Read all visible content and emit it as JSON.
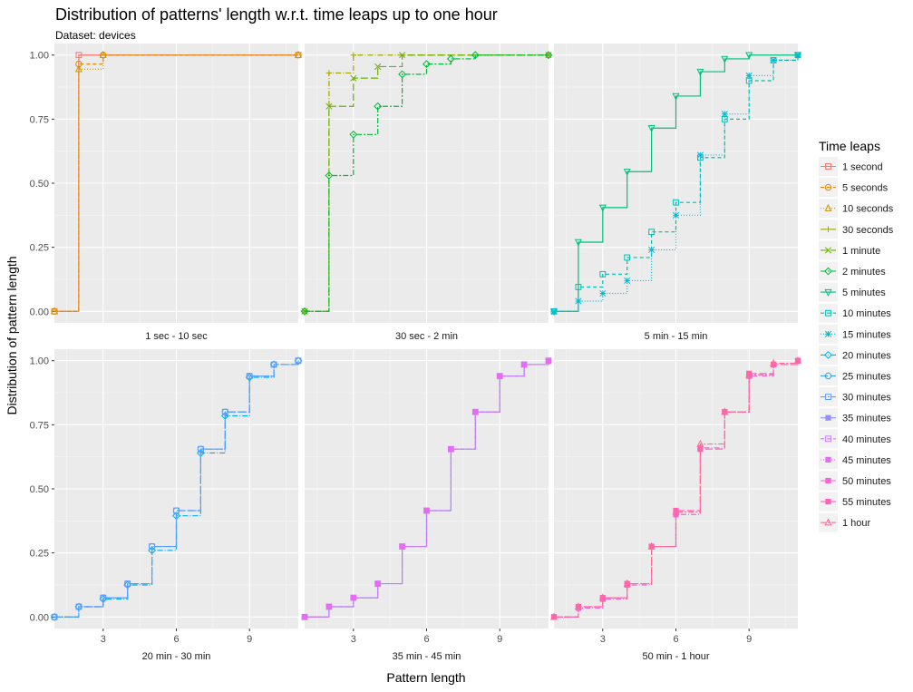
{
  "chart_data": {
    "type": "line",
    "step": true,
    "title": "Distribution of patterns' length w.r.t. time leaps up to one hour",
    "subtitle": "Dataset: devices",
    "xlabel": "Pattern length",
    "ylabel": "Distribution of pattern length",
    "ylim": [
      0,
      1
    ],
    "yticks": [
      0,
      0.25,
      0.5,
      0.75,
      1
    ],
    "ytick_labels": [
      "0.00",
      "0.25",
      "0.50",
      "0.75",
      "1.00"
    ],
    "legend_title": "Time leaps",
    "legend_position": "right",
    "series_styles": [
      {
        "name": "1 second",
        "color": "#F8766D",
        "shape": "square-cross",
        "dash": ""
      },
      {
        "name": "5 seconds",
        "color": "#E58700",
        "shape": "circle",
        "dash": "4,3"
      },
      {
        "name": "10 seconds",
        "color": "#C99800",
        "shape": "triangle",
        "dash": "1,2"
      },
      {
        "name": "30 seconds",
        "color": "#A3A500",
        "shape": "plus",
        "dash": "6,2,1,2"
      },
      {
        "name": "1 minute",
        "color": "#6BB100",
        "shape": "cross",
        "dash": "8,3"
      },
      {
        "name": "2 minutes",
        "color": "#00BA38",
        "shape": "diamond",
        "dash": "6,2,2,2"
      },
      {
        "name": "5 minutes",
        "color": "#00BF7D",
        "shape": "triangle-down",
        "dash": ""
      },
      {
        "name": "10 minutes",
        "color": "#00C0AF",
        "shape": "square-x",
        "dash": "4,3"
      },
      {
        "name": "15 minutes",
        "color": "#00BCD8",
        "shape": "star",
        "dash": "1,2"
      },
      {
        "name": "20 minutes",
        "color": "#00B0F6",
        "shape": "diamond-plus",
        "dash": "6,2,1,2"
      },
      {
        "name": "25 minutes",
        "color": "#35A2FF",
        "shape": "circle-plus",
        "dash": "8,3"
      },
      {
        "name": "30 minutes",
        "color": "#619CFF",
        "shape": "square-star",
        "dash": "6,2,2,2"
      },
      {
        "name": "35 minutes",
        "color": "#9590FF",
        "shape": "square",
        "dash": ""
      },
      {
        "name": "40 minutes",
        "color": "#C77CFF",
        "shape": "square-x",
        "dash": "4,3"
      },
      {
        "name": "45 minutes",
        "color": "#E76BF3",
        "shape": "square",
        "dash": "1,2"
      },
      {
        "name": "50 minutes",
        "color": "#FA62DB",
        "shape": "square",
        "dash": "6,2,1,2"
      },
      {
        "name": "55 minutes",
        "color": "#FF62BC",
        "shape": "square",
        "dash": "8,3"
      },
      {
        "name": "1 hour",
        "color": "#FF6C91",
        "shape": "triangle",
        "dash": "6,2,2,2"
      }
    ],
    "panels": [
      {
        "label": "1 sec - 10 sec",
        "xlim": [
          1,
          11
        ],
        "xticks": [],
        "series": [
          {
            "name": "1 second",
            "x": [
              1,
              2,
              11
            ],
            "y": [
              0,
              1.0,
              1.0
            ]
          },
          {
            "name": "5 seconds",
            "x": [
              1,
              2,
              3,
              11
            ],
            "y": [
              0,
              0.965,
              1.0,
              1.0
            ]
          },
          {
            "name": "10 seconds",
            "x": [
              1,
              2,
              3,
              11
            ],
            "y": [
              0,
              0.945,
              1.0,
              1.0
            ]
          }
        ]
      },
      {
        "label": "30 sec - 2 min",
        "xlim": [
          1,
          11
        ],
        "xticks": [],
        "series": [
          {
            "name": "30 seconds",
            "x": [
              1,
              2,
              3,
              11
            ],
            "y": [
              0,
              0.93,
              1.0,
              1.0
            ]
          },
          {
            "name": "1 minute",
            "x": [
              1,
              2,
              3,
              4,
              5,
              11
            ],
            "y": [
              0,
              0.8,
              0.91,
              0.955,
              1.0,
              1.0
            ]
          },
          {
            "name": "2 minutes",
            "x": [
              1,
              2,
              3,
              4,
              5,
              6,
              7,
              8,
              11
            ],
            "y": [
              0,
              0.53,
              0.69,
              0.8,
              0.925,
              0.965,
              0.985,
              1.0,
              1.0
            ]
          }
        ]
      },
      {
        "label": "5 min - 15 min",
        "xlim": [
          1,
          11
        ],
        "xticks": [],
        "series": [
          {
            "name": "5 minutes",
            "x": [
              1,
              2,
              3,
              4,
              5,
              6,
              7,
              8,
              9,
              11
            ],
            "y": [
              0,
              0.27,
              0.405,
              0.545,
              0.715,
              0.84,
              0.935,
              0.985,
              1.0,
              1.0
            ]
          },
          {
            "name": "10 minutes",
            "x": [
              1,
              2,
              3,
              4,
              5,
              6,
              7,
              8,
              9,
              10,
              11
            ],
            "y": [
              0,
              0.095,
              0.145,
              0.21,
              0.31,
              0.425,
              0.6,
              0.75,
              0.9,
              0.98,
              1.0
            ]
          },
          {
            "name": "15 minutes",
            "x": [
              1,
              2,
              3,
              4,
              5,
              6,
              7,
              8,
              9,
              10,
              11
            ],
            "y": [
              0,
              0.04,
              0.07,
              0.12,
              0.24,
              0.375,
              0.61,
              0.77,
              0.92,
              0.98,
              1.0
            ]
          }
        ]
      },
      {
        "label": "20 min - 30 min",
        "xlim": [
          1,
          11
        ],
        "xticks": [
          3,
          6,
          9
        ],
        "series": [
          {
            "name": "20 minutes",
            "x": [
              1,
              2,
              3,
              4,
              5,
              6,
              7,
              8,
              9,
              10,
              11
            ],
            "y": [
              0,
              0.04,
              0.07,
              0.125,
              0.26,
              0.395,
              0.64,
              0.785,
              0.935,
              0.985,
              1.0
            ]
          },
          {
            "name": "25 minutes",
            "x": [
              1,
              2,
              3,
              4,
              5,
              6,
              7,
              8,
              9,
              10,
              11
            ],
            "y": [
              0,
              0.04,
              0.075,
              0.13,
              0.275,
              0.415,
              0.655,
              0.8,
              0.94,
              0.985,
              1.0
            ]
          },
          {
            "name": "30 minutes",
            "x": [
              1,
              2,
              3,
              4,
              5,
              6,
              7,
              8,
              9,
              10,
              11
            ],
            "y": [
              0,
              0.04,
              0.075,
              0.13,
              0.275,
              0.415,
              0.655,
              0.8,
              0.94,
              0.985,
              1.0
            ]
          }
        ]
      },
      {
        "label": "35 min - 45 min",
        "xlim": [
          1,
          11
        ],
        "xticks": [
          3,
          6,
          9
        ],
        "series": [
          {
            "name": "35 minutes",
            "x": [
              1,
              2,
              3,
              4,
              5,
              6,
              7,
              8,
              9,
              10,
              11
            ],
            "y": [
              0,
              0.04,
              0.075,
              0.13,
              0.275,
              0.415,
              0.655,
              0.8,
              0.94,
              0.985,
              1.0
            ]
          },
          {
            "name": "40 minutes",
            "x": [
              1,
              2,
              3,
              4,
              5,
              6,
              7,
              8,
              9,
              10,
              11
            ],
            "y": [
              0,
              0.04,
              0.075,
              0.13,
              0.275,
              0.415,
              0.655,
              0.8,
              0.94,
              0.985,
              1.0
            ]
          },
          {
            "name": "45 minutes",
            "x": [
              1,
              2,
              3,
              4,
              5,
              6,
              7,
              8,
              9,
              10,
              11
            ],
            "y": [
              0,
              0.04,
              0.075,
              0.13,
              0.275,
              0.415,
              0.655,
              0.8,
              0.94,
              0.985,
              1.0
            ]
          }
        ]
      },
      {
        "label": "50 min - 1 hour",
        "xlim": [
          1,
          11
        ],
        "xticks": [
          3,
          6,
          9
        ],
        "series": [
          {
            "name": "50 minutes",
            "x": [
              1,
              2,
              3,
              4,
              5,
              6,
              7,
              8,
              9,
              10,
              11
            ],
            "y": [
              0,
              0.035,
              0.07,
              0.125,
              0.275,
              0.4,
              0.66,
              0.8,
              0.94,
              0.985,
              1.0
            ]
          },
          {
            "name": "55 minutes",
            "x": [
              1,
              2,
              3,
              4,
              5,
              6,
              7,
              8,
              9,
              10,
              11
            ],
            "y": [
              0,
              0.04,
              0.075,
              0.13,
              0.275,
              0.415,
              0.655,
              0.8,
              0.95,
              0.985,
              1.0
            ]
          },
          {
            "name": "1 hour",
            "x": [
              1,
              2,
              3,
              4,
              5,
              6,
              7,
              8,
              9,
              10,
              11
            ],
            "y": [
              0,
              0.04,
              0.075,
              0.13,
              0.275,
              0.41,
              0.675,
              0.8,
              0.945,
              0.99,
              1.0
            ]
          }
        ]
      }
    ]
  }
}
